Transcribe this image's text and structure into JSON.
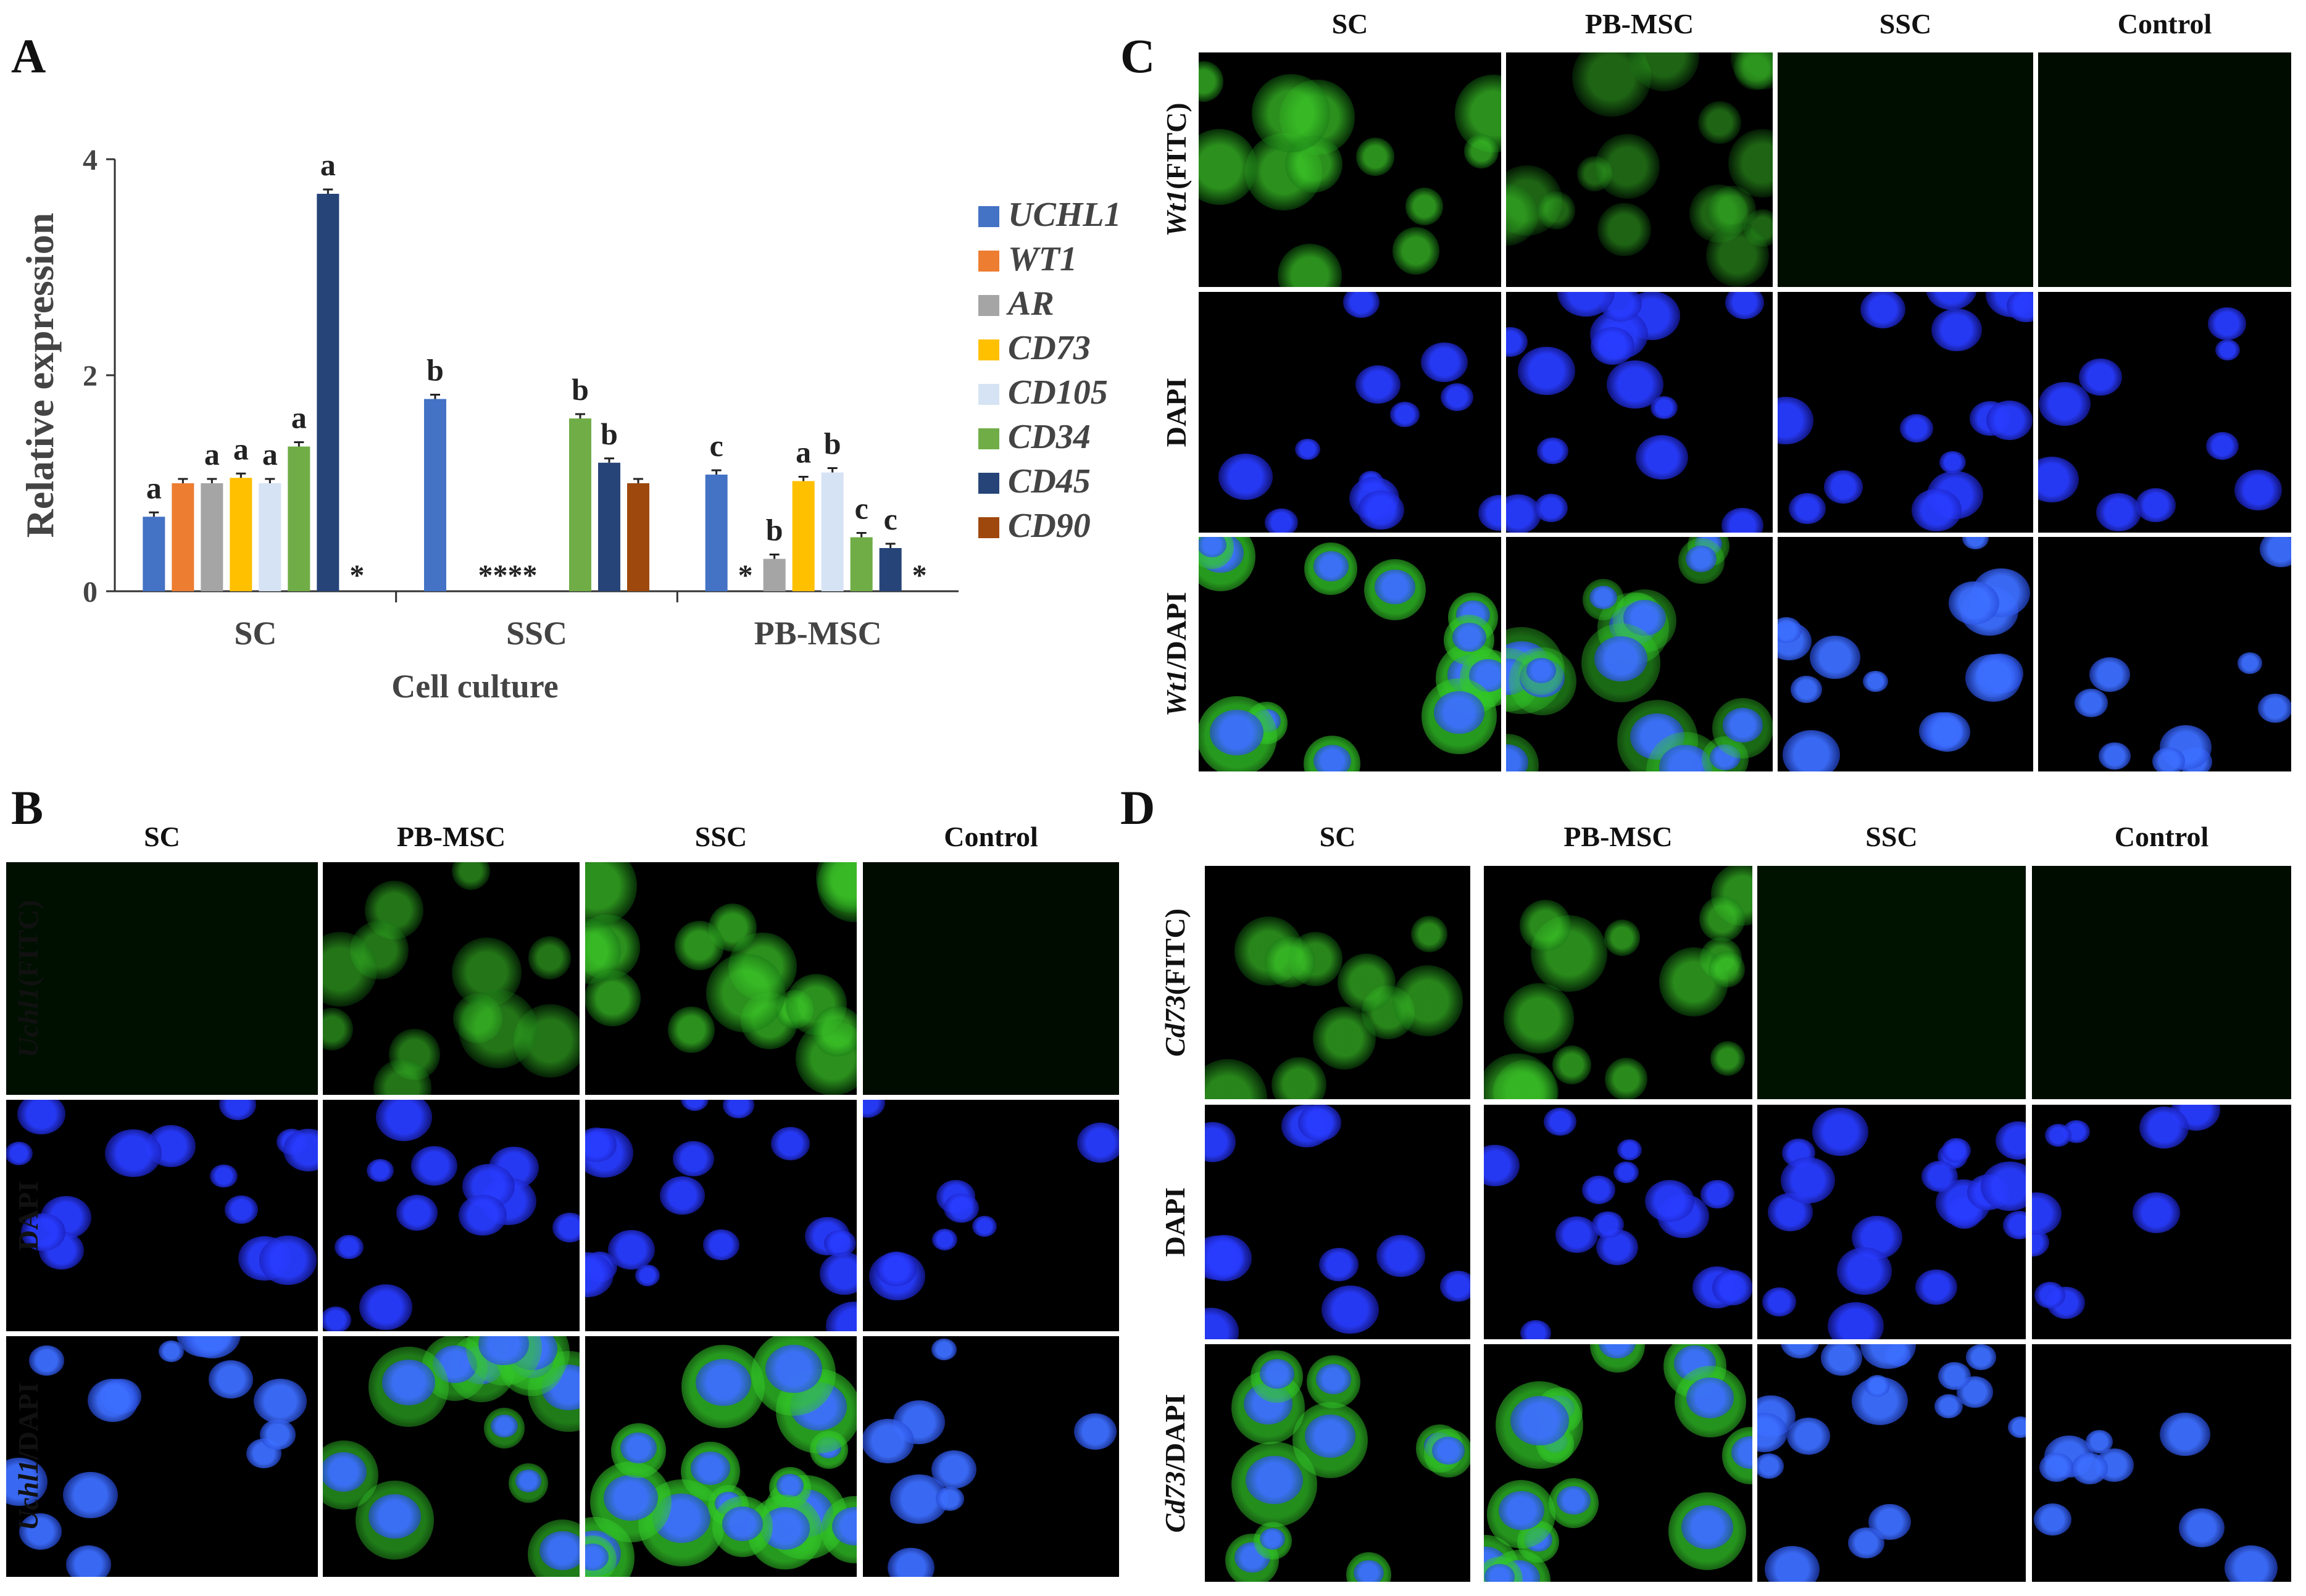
{
  "panels": {
    "A": {
      "label": "A"
    },
    "B": {
      "label": "B",
      "columns": [
        "SC",
        "PB-MSC",
        "SSC",
        "Control"
      ],
      "rows": [
        {
          "gene": "Uchl1",
          "suffix": "(FITC)"
        },
        {
          "gene": "",
          "suffix": "DAPI"
        },
        {
          "gene": "Uchl1",
          "suffix": "/DAPI"
        }
      ]
    },
    "C": {
      "label": "C",
      "columns": [
        "SC",
        "PB-MSC",
        "SSC",
        "Control"
      ],
      "rows": [
        {
          "gene": "Wt1",
          "suffix": "(FITC)"
        },
        {
          "gene": "",
          "suffix": "DAPI"
        },
        {
          "gene": "Wt1",
          "suffix": "/DAPI"
        }
      ]
    },
    "D": {
      "label": "D",
      "columns": [
        "SC",
        "PB-MSC",
        "SSC",
        "Control"
      ],
      "rows": [
        {
          "gene": "Cd73",
          "suffix": "(FITC)"
        },
        {
          "gene": "",
          "suffix": "DAPI"
        },
        {
          "gene": "Cd73",
          "suffix": "/DAPI"
        }
      ]
    }
  },
  "chart_data": {
    "type": "bar",
    "ylabel": "Relative expression",
    "xlabel": "Cell culture",
    "ylim": [
      0,
      4
    ],
    "yticks": [
      "0",
      "2",
      "4"
    ],
    "categories": [
      "SC",
      "SSC",
      "PB-MSC"
    ],
    "legend_position": "right",
    "series": [
      {
        "name": "UCHL1",
        "color": "#4472C4",
        "values": [
          0.69,
          1.78,
          1.08
        ],
        "letters": [
          "a",
          "b",
          "c"
        ]
      },
      {
        "name": "WT1",
        "color": "#ED7D31",
        "values": [
          1.0,
          0,
          0
        ],
        "letters": [
          "",
          "",
          ""
        ]
      },
      {
        "name": "AR",
        "color": "#A5A5A5",
        "values": [
          1.0,
          0,
          0.3
        ],
        "letters": [
          "a",
          "",
          "b"
        ]
      },
      {
        "name": "CD73",
        "color": "#FFC000",
        "values": [
          1.05,
          0,
          1.02
        ],
        "letters": [
          "a",
          "",
          "a"
        ]
      },
      {
        "name": "CD105",
        "color": "#D6E3F4",
        "values": [
          1.0,
          0,
          1.1
        ],
        "letters": [
          "a",
          "",
          "b"
        ]
      },
      {
        "name": "CD34",
        "color": "#70AD47",
        "values": [
          1.34,
          1.6,
          0.5
        ],
        "letters": [
          "a",
          "b",
          "c"
        ]
      },
      {
        "name": "CD45",
        "color": "#264478",
        "values": [
          3.68,
          1.19,
          0.4
        ],
        "letters": [
          "a",
          "b",
          "c"
        ]
      },
      {
        "name": "CD90",
        "color": "#9E480E",
        "values": [
          0,
          1.0,
          0
        ],
        "letters": [
          "",
          "",
          ""
        ]
      }
    ],
    "annotations": [
      {
        "category": "SC",
        "series": "CD90",
        "text": "*"
      },
      {
        "category": "SSC",
        "series": "WT1–CD105",
        "text": "****"
      },
      {
        "category": "PB-MSC",
        "series": "WT1",
        "text": "*"
      },
      {
        "category": "PB-MSC",
        "series": "CD90",
        "text": "*"
      }
    ]
  }
}
